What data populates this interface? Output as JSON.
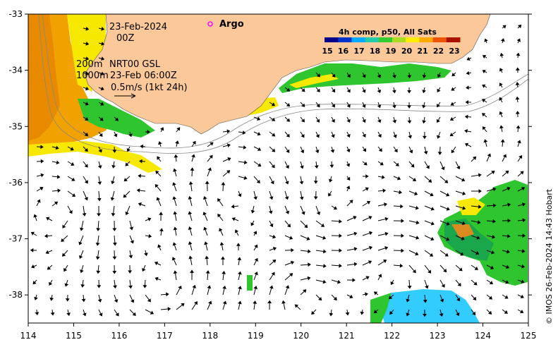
{
  "map": {
    "date": "23-Feb-2024",
    "time": "00Z",
    "contour_200": "200m",
    "contour_1000": "1000m",
    "product": "NRT00 GSL",
    "product_time": "23-Feb 06:00Z",
    "scale_text": "0.5m/s (1kt 24h)",
    "argo_label": "Argo",
    "credit": "© IMOS 26-Feb-2024 14:43 Hobart",
    "lon_range": [
      114,
      125
    ],
    "lat_range": [
      -38.5,
      -33
    ],
    "x_ticks": [
      "114",
      "115",
      "116",
      "117",
      "118",
      "119",
      "120",
      "121",
      "122",
      "123",
      "124",
      "125"
    ],
    "y_ticks": [
      "-33",
      "-34",
      "-35",
      "-36",
      "-37",
      "-38"
    ]
  },
  "legend": {
    "title": "4h comp, p50, All Sats",
    "ticks": [
      "15",
      "16",
      "17",
      "18",
      "19",
      "20",
      "21",
      "22",
      "23"
    ],
    "colors": [
      "#00008b",
      "#0033cc",
      "#00aaff",
      "#22ccaa",
      "#33cc33",
      "#aadd22",
      "#ffee00",
      "#ffaa00",
      "#ee5500",
      "#aa1100"
    ]
  },
  "colors": {
    "land": "#fbc89a",
    "coast_line": "#888888",
    "sst_warm": "#f2a200",
    "sst_orange": "#e88a00",
    "sst_yellow": "#f7e800",
    "sst_green": "#2ec52e",
    "sst_green_dark": "#1aa64a",
    "sst_cyan": "#33ccff",
    "argo": "#ff00ff"
  }
}
